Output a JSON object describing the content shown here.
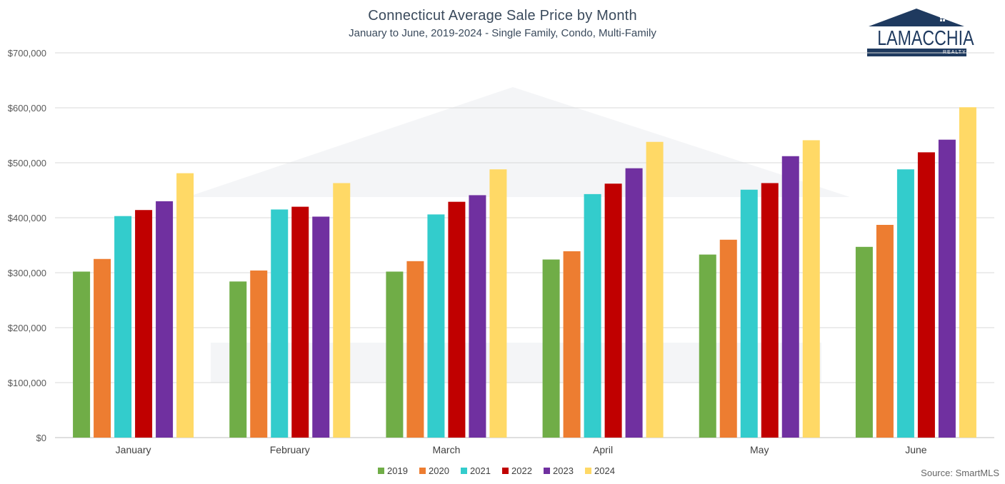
{
  "chart_data": {
    "type": "bar",
    "title": "Connecticut Average Sale Price by Month",
    "subtitle": "January to June, 2019-2024 - Single Family, Condo, Multi-Family",
    "categories": [
      "January",
      "February",
      "March",
      "April",
      "May",
      "June"
    ],
    "series": [
      {
        "name": "2019",
        "color": "#70AD47",
        "values": [
          302000,
          284000,
          302000,
          324000,
          333000,
          347000
        ]
      },
      {
        "name": "2020",
        "color": "#ED7D31",
        "values": [
          325000,
          304000,
          321000,
          339000,
          360000,
          387000
        ]
      },
      {
        "name": "2021",
        "color": "#33CCCC",
        "values": [
          403000,
          415000,
          406000,
          443000,
          451000,
          488000
        ]
      },
      {
        "name": "2022",
        "color": "#C00000",
        "values": [
          414000,
          420000,
          429000,
          462000,
          463000,
          519000
        ]
      },
      {
        "name": "2023",
        "color": "#7030A0",
        "values": [
          430000,
          402000,
          441000,
          490000,
          512000,
          542000
        ]
      },
      {
        "name": "2024",
        "color": "#FFD966",
        "values": [
          481000,
          463000,
          488000,
          538000,
          541000,
          601000
        ]
      }
    ],
    "y_ticks": [
      "$0",
      "$100,000",
      "$200,000",
      "$300,000",
      "$400,000",
      "$500,000",
      "$600,000",
      "$700,000"
    ],
    "ylim": [
      0,
      700000
    ],
    "xlabel": "",
    "ylabel": "",
    "grid": true,
    "legend_position": "bottom"
  },
  "source_text": "Source: SmartMLS",
  "logo": {
    "name": "LAMACCHIA",
    "tagline": "REALTY",
    "color": "#1f3a5f"
  }
}
